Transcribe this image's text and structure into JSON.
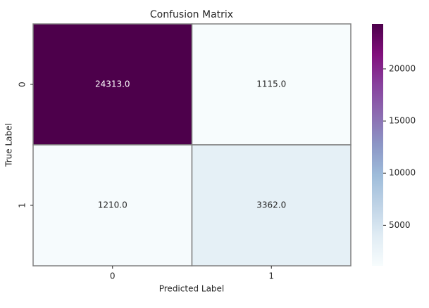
{
  "chart_data": {
    "type": "heatmap",
    "title": "Confusion Matrix",
    "x_label": "Predicted Label",
    "y_label": "True Label",
    "x_categories": [
      "0",
      "1"
    ],
    "y_categories": [
      "0",
      "1"
    ],
    "values": [
      [
        24313,
        1115
      ],
      [
        1210,
        3362
      ]
    ],
    "value_labels": [
      [
        "24313.0",
        "1115.0"
      ],
      [
        "1210.0",
        "3362.0"
      ]
    ],
    "clim": [
      1115,
      24313
    ],
    "cticks": [
      5000,
      10000,
      15000,
      20000
    ],
    "colormap": [
      "#f7fcfd",
      "#e0ecf4",
      "#bfd3e6",
      "#9ebcda",
      "#8c96c6",
      "#8c6bb1",
      "#88419d",
      "#810f7c",
      "#4d004b"
    ],
    "line_color": "#808080"
  }
}
